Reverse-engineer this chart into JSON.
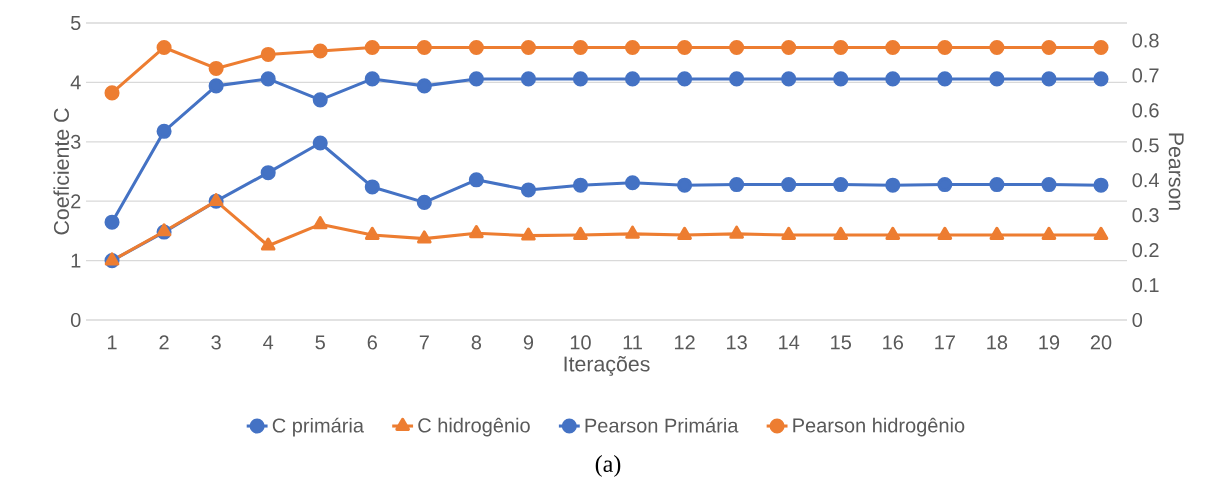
{
  "chart_data": {
    "type": "line",
    "xlabel": "Iterações",
    "ylabel": "Coeficiente C",
    "y2label": "Pearson",
    "categories": [
      "1",
      "2",
      "3",
      "4",
      "5",
      "6",
      "7",
      "8",
      "9",
      "10",
      "11",
      "12",
      "13",
      "14",
      "15",
      "16",
      "17",
      "18",
      "19",
      "20"
    ],
    "series": [
      {
        "name": "C primária",
        "color": "#4472c4",
        "marker": "circle",
        "axis": "y",
        "values": [
          1.0,
          1.48,
          2.0,
          2.48,
          2.98,
          2.24,
          1.98,
          2.36,
          2.19,
          2.27,
          2.31,
          2.27,
          2.28,
          2.28,
          2.28,
          2.27,
          2.28,
          2.28,
          2.28,
          2.27
        ]
      },
      {
        "name": "C hidrogênio",
        "color": "#ed7d31",
        "marker": "triangle",
        "axis": "y",
        "values": [
          1.0,
          1.49,
          2.0,
          1.25,
          1.61,
          1.43,
          1.37,
          1.46,
          1.42,
          1.43,
          1.45,
          1.43,
          1.45,
          1.43,
          1.43,
          1.43,
          1.43,
          1.43,
          1.43,
          1.43
        ]
      },
      {
        "name": "Pearson Primária",
        "color": "#4472c4",
        "marker": "circle",
        "axis": "y2",
        "values": [
          0.28,
          0.54,
          0.67,
          0.69,
          0.63,
          0.69,
          0.67,
          0.69,
          0.69,
          0.69,
          0.69,
          0.69,
          0.69,
          0.69,
          0.69,
          0.69,
          0.69,
          0.69,
          0.69,
          0.69
        ]
      },
      {
        "name": "Pearson hidrogênio",
        "color": "#ed7d31",
        "marker": "circle",
        "axis": "y2",
        "values": [
          0.65,
          0.78,
          0.72,
          0.76,
          0.77,
          0.78,
          0.78,
          0.78,
          0.78,
          0.78,
          0.78,
          0.78,
          0.78,
          0.78,
          0.78,
          0.78,
          0.78,
          0.78,
          0.78,
          0.78
        ]
      }
    ],
    "ylim": [
      0,
      5
    ],
    "yticks": [
      0,
      1,
      2,
      3,
      4,
      5
    ],
    "y2lim": [
      0,
      0.85
    ],
    "y2ticks": [
      0,
      0.1,
      0.2,
      0.3,
      0.4,
      0.5,
      0.6,
      0.7,
      0.8
    ],
    "grid": "y",
    "legend": "bottom",
    "line_style": "solid",
    "annotations": [
      "(a)"
    ]
  }
}
